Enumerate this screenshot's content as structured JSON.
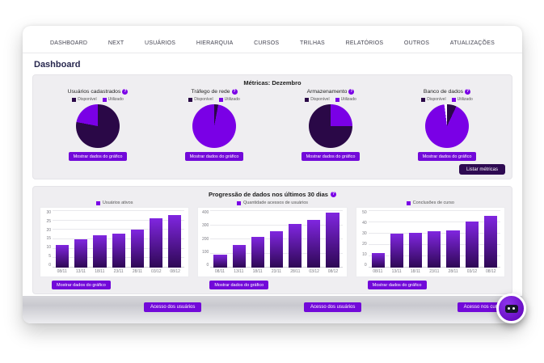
{
  "page": {
    "heading": "Dashboard"
  },
  "nav": {
    "items": [
      "DASHBOARD",
      "NEXT",
      "USUÁRIOS",
      "HIERARQUIA",
      "CURSOS",
      "TRILHAS",
      "RELATÓRIOS",
      "OUTROS",
      "ATUALIZAÇÕES"
    ]
  },
  "metrics": {
    "title": "Métricas: Dezembro",
    "legend": [
      "Disponível",
      "Utilizado"
    ],
    "show_data_label": "Mostrar dados do gráfico",
    "list_metrics_label": "Listar métricas"
  },
  "progression": {
    "title": "Progressão de dados nos últimos 30 dias",
    "show_data_label": "Mostrar dados do gráfico"
  },
  "footer": {
    "buttons": [
      "Acesso dos usuários",
      "Acesso dos usuários",
      "Acesso nos cursos"
    ]
  },
  "colors": {
    "pie_dark": "#2a0847",
    "pie_bright": "#7a00e6",
    "button_purple": "#7209d9",
    "button_dark": "#2e0a52",
    "bar_top": "#8026e0",
    "bar_bottom": "#2e0854"
  },
  "chart_data": [
    {
      "type": "pie",
      "title": "Usuários cadastrados",
      "segments": [
        {
          "label": "Disponível",
          "value": 78,
          "color": "dark"
        },
        {
          "label": "Utilizado",
          "value": 22,
          "color": "bright"
        }
      ]
    },
    {
      "type": "pie",
      "title": "Tráfego de rede",
      "segments": [
        {
          "label": "Disponível",
          "value": 3,
          "color": "dark"
        },
        {
          "label": "Utilizado",
          "value": 97,
          "color": "bright"
        }
      ]
    },
    {
      "type": "pie",
      "title": "Armazenamento",
      "segments": [
        {
          "label": "Utilizado",
          "value": 25,
          "color": "bright"
        },
        {
          "label": "Disponível",
          "value": 75,
          "color": "dark"
        }
      ]
    },
    {
      "type": "pie",
      "title": "Banco de dados",
      "segments": [
        {
          "label": "Disponível",
          "value": 7,
          "color": "dark"
        },
        {
          "label": "Utilizado",
          "value": 91,
          "color": "bright"
        },
        {
          "label": "",
          "value": 2,
          "color": "white"
        }
      ]
    },
    {
      "type": "bar",
      "title": "Usuários ativos",
      "categories": [
        "08/11",
        "13/11",
        "18/11",
        "23/11",
        "28/11",
        "03/12",
        "08/12"
      ],
      "values": [
        12,
        15,
        17,
        18,
        20,
        26,
        28
      ],
      "ylim": [
        0,
        30
      ],
      "yticks": [
        0,
        5,
        10,
        15,
        20,
        25,
        30
      ]
    },
    {
      "type": "bar",
      "title": "Quantidade acessos de usuários",
      "categories": [
        "08/11",
        "13/11",
        "18/11",
        "23/11",
        "28/11",
        "03/12",
        "08/12"
      ],
      "values": [
        90,
        160,
        220,
        260,
        310,
        340,
        390
      ],
      "ylim": [
        0,
        400
      ],
      "yticks": [
        0,
        100,
        200,
        300,
        400
      ]
    },
    {
      "type": "bar",
      "title": "Conclusões de curso",
      "categories": [
        "08/11",
        "13/11",
        "18/11",
        "23/11",
        "28/11",
        "03/12",
        "08/12"
      ],
      "values": [
        13,
        30,
        31,
        32,
        33,
        41,
        46
      ],
      "ylim": [
        0,
        50
      ],
      "yticks": [
        0,
        10,
        20,
        30,
        40,
        50
      ]
    }
  ]
}
